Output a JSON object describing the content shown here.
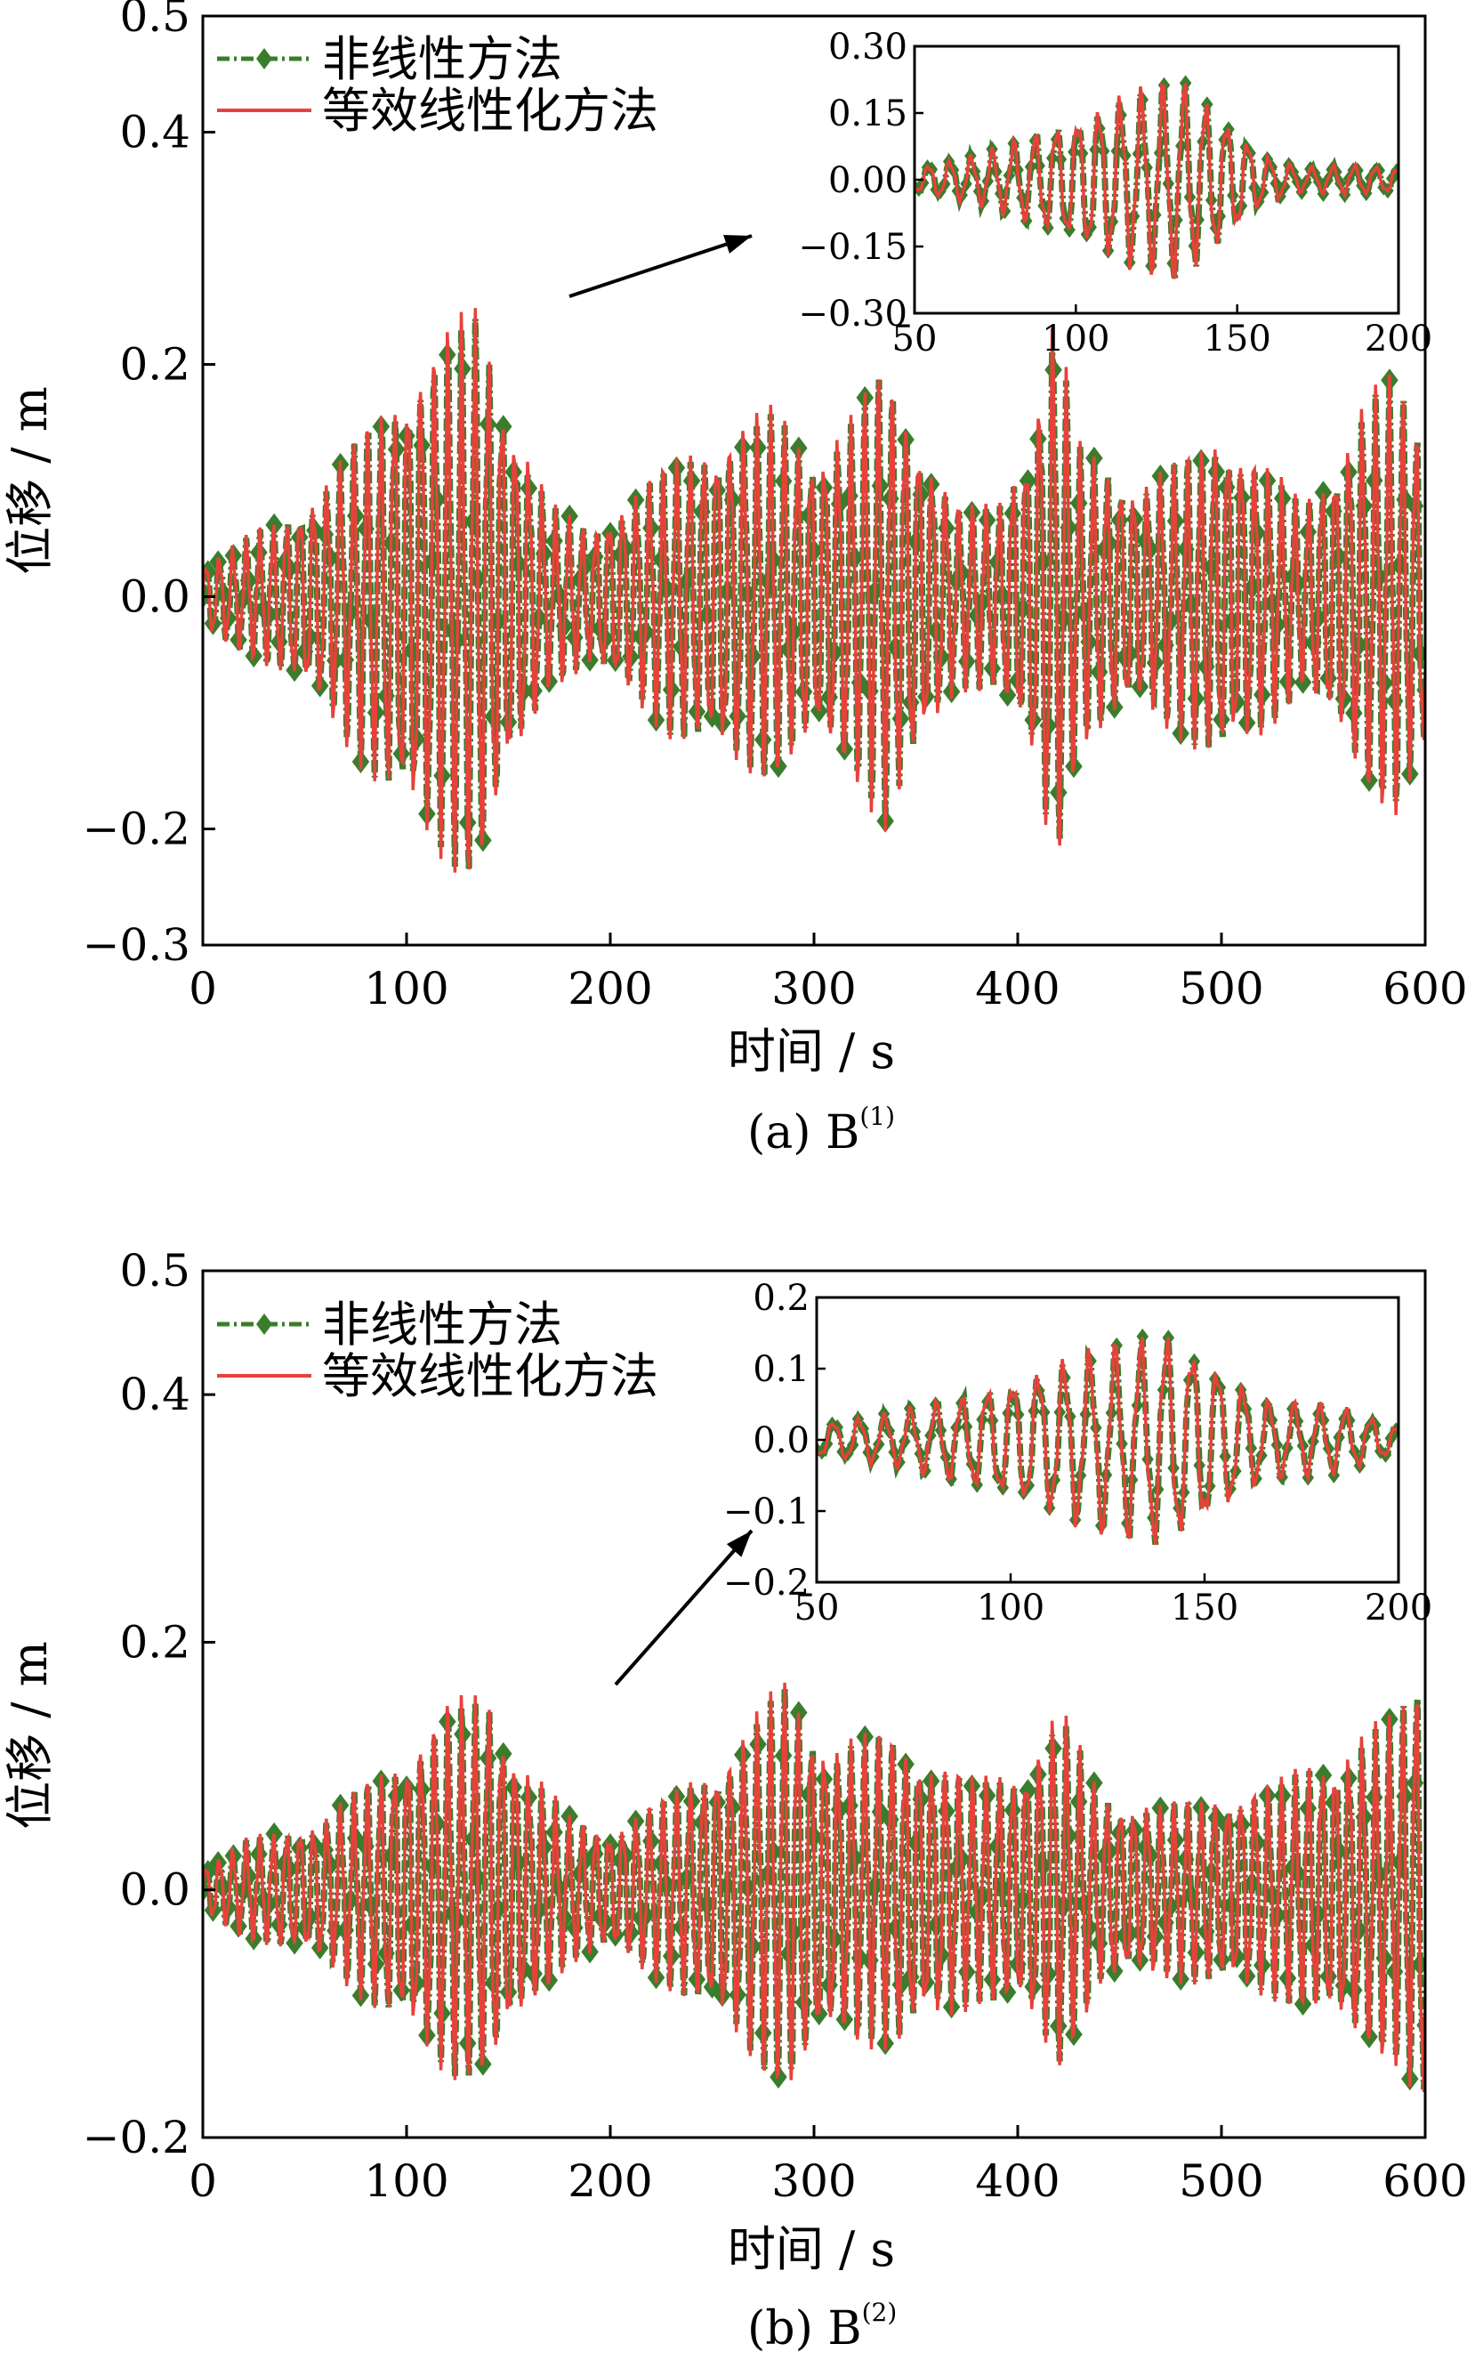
{
  "chart_data": [
    {
      "id": "a",
      "type": "line",
      "caption": "(a) B",
      "caption_sup": "(1)",
      "xlabel": "时间 / s",
      "ylabel": "位移 / m",
      "xlim": [
        0,
        600
      ],
      "ylim": [
        -0.3,
        0.5
      ],
      "xticks": [
        "0",
        "100",
        "200",
        "300",
        "400",
        "500",
        "600"
      ],
      "yticks": [
        "−0.3",
        "−0.2",
        "0.0",
        "0.2",
        "0.4",
        "0.5"
      ],
      "yticks_values": [
        -0.3,
        -0.2,
        0.0,
        0.2,
        0.4,
        0.5
      ],
      "legend_position": "top-left",
      "series": [
        {
          "name": "非线性方法",
          "color": "#3a7d2c",
          "style": "dash-dot with diamond markers"
        },
        {
          "name": "等效线性化方法",
          "color": "#e8413b",
          "style": "solid"
        }
      ],
      "envelope": [
        {
          "x": 0,
          "a": 0.03
        },
        {
          "x": 20,
          "a": 0.05
        },
        {
          "x": 40,
          "a": 0.07
        },
        {
          "x": 60,
          "a": 0.1
        },
        {
          "x": 80,
          "a": 0.15
        },
        {
          "x": 100,
          "a": 0.2
        },
        {
          "x": 120,
          "a": 0.23
        },
        {
          "x": 135,
          "a": 0.25
        },
        {
          "x": 150,
          "a": 0.17
        },
        {
          "x": 170,
          "a": 0.08
        },
        {
          "x": 190,
          "a": 0.06
        },
        {
          "x": 210,
          "a": 0.09
        },
        {
          "x": 230,
          "a": 0.12
        },
        {
          "x": 260,
          "a": 0.15
        },
        {
          "x": 280,
          "a": 0.16
        },
        {
          "x": 300,
          "a": 0.13
        },
        {
          "x": 320,
          "a": 0.16
        },
        {
          "x": 335,
          "a": 0.2
        },
        {
          "x": 350,
          "a": 0.15
        },
        {
          "x": 370,
          "a": 0.08
        },
        {
          "x": 390,
          "a": 0.08
        },
        {
          "x": 405,
          "a": 0.14
        },
        {
          "x": 418,
          "a": 0.25
        },
        {
          "x": 430,
          "a": 0.13
        },
        {
          "x": 460,
          "a": 0.1
        },
        {
          "x": 480,
          "a": 0.12
        },
        {
          "x": 500,
          "a": 0.15
        },
        {
          "x": 520,
          "a": 0.12
        },
        {
          "x": 540,
          "a": 0.08
        },
        {
          "x": 555,
          "a": 0.12
        },
        {
          "x": 570,
          "a": 0.17
        },
        {
          "x": 585,
          "a": 0.19
        },
        {
          "x": 600,
          "a": 0.14
        }
      ],
      "inset": {
        "xlim": [
          50,
          200
        ],
        "ylim": [
          -0.3,
          0.3
        ],
        "xticks": [
          "50",
          "100",
          "150",
          "200"
        ],
        "yticks": [
          "0.30",
          "0.15",
          "0.00",
          "−0.15",
          "−0.30"
        ],
        "yticks_values": [
          0.3,
          0.15,
          0.0,
          -0.15,
          -0.3
        ],
        "envelope": [
          {
            "x": 50,
            "a": 0.03
          },
          {
            "x": 70,
            "a": 0.06
          },
          {
            "x": 90,
            "a": 0.12
          },
          {
            "x": 100,
            "a": 0.15
          },
          {
            "x": 115,
            "a": 0.2
          },
          {
            "x": 132,
            "a": 0.24
          },
          {
            "x": 145,
            "a": 0.16
          },
          {
            "x": 158,
            "a": 0.06
          },
          {
            "x": 170,
            "a": 0.03
          },
          {
            "x": 185,
            "a": 0.035
          },
          {
            "x": 200,
            "a": 0.03
          }
        ]
      }
    },
    {
      "id": "b",
      "type": "line",
      "caption": "(b) B",
      "caption_sup": "(2)",
      "xlabel": "时间 / s",
      "ylabel": "位移 / m",
      "xlim": [
        0,
        600
      ],
      "ylim": [
        -0.2,
        0.5
      ],
      "xticks": [
        "0",
        "100",
        "200",
        "300",
        "400",
        "500",
        "600"
      ],
      "yticks": [
        "−0.2",
        "0.0",
        "0.2",
        "0.4",
        "0.5"
      ],
      "yticks_values": [
        -0.2,
        0.0,
        0.2,
        0.4,
        0.5
      ],
      "legend_position": "top-left",
      "series": [
        {
          "name": "非线性方法",
          "color": "#3a7d2c",
          "style": "dash-dot with diamond markers"
        },
        {
          "name": "等效线性化方法",
          "color": "#e8413b",
          "style": "solid"
        }
      ],
      "envelope": [
        {
          "x": 0,
          "a": 0.02
        },
        {
          "x": 20,
          "a": 0.04
        },
        {
          "x": 40,
          "a": 0.05
        },
        {
          "x": 60,
          "a": 0.06
        },
        {
          "x": 80,
          "a": 0.09
        },
        {
          "x": 100,
          "a": 0.12
        },
        {
          "x": 120,
          "a": 0.15
        },
        {
          "x": 140,
          "a": 0.16
        },
        {
          "x": 160,
          "a": 0.1
        },
        {
          "x": 180,
          "a": 0.06
        },
        {
          "x": 200,
          "a": 0.05
        },
        {
          "x": 230,
          "a": 0.08
        },
        {
          "x": 260,
          "a": 0.12
        },
        {
          "x": 287,
          "a": 0.17
        },
        {
          "x": 310,
          "a": 0.12
        },
        {
          "x": 340,
          "a": 0.13
        },
        {
          "x": 360,
          "a": 0.11
        },
        {
          "x": 380,
          "a": 0.09
        },
        {
          "x": 400,
          "a": 0.1
        },
        {
          "x": 420,
          "a": 0.15
        },
        {
          "x": 440,
          "a": 0.08
        },
        {
          "x": 470,
          "a": 0.07
        },
        {
          "x": 500,
          "a": 0.08
        },
        {
          "x": 530,
          "a": 0.09
        },
        {
          "x": 560,
          "a": 0.12
        },
        {
          "x": 585,
          "a": 0.14
        },
        {
          "x": 600,
          "a": 0.19
        }
      ],
      "inset": {
        "xlim": [
          50,
          200
        ],
        "ylim": [
          -0.2,
          0.2
        ],
        "xticks": [
          "50",
          "100",
          "150",
          "200"
        ],
        "yticks": [
          "0.2",
          "0.1",
          "0.0",
          "−0.1",
          "−0.2"
        ],
        "yticks_values": [
          0.2,
          0.1,
          0.0,
          -0.1,
          -0.2
        ],
        "envelope": [
          {
            "x": 50,
            "a": 0.025
          },
          {
            "x": 70,
            "a": 0.04
          },
          {
            "x": 90,
            "a": 0.07
          },
          {
            "x": 110,
            "a": 0.11
          },
          {
            "x": 125,
            "a": 0.14
          },
          {
            "x": 140,
            "a": 0.16
          },
          {
            "x": 150,
            "a": 0.13
          },
          {
            "x": 165,
            "a": 0.06
          },
          {
            "x": 185,
            "a": 0.05
          },
          {
            "x": 200,
            "a": 0.02
          }
        ]
      }
    }
  ]
}
